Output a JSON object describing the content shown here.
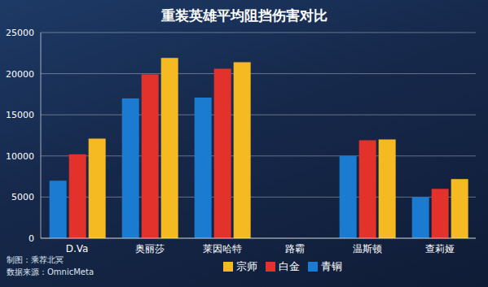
{
  "chart_data": {
    "type": "bar",
    "title": "重装英雄平均阻挡伤害对比",
    "categories": [
      "D.Va",
      "奥丽莎",
      "莱因哈特",
      "路霸",
      "温斯顿",
      "查莉娅"
    ],
    "series": [
      {
        "name": "青铜",
        "color": "#1b7bd0",
        "values": [
          7000,
          17000,
          17100,
          null,
          10000,
          5000
        ]
      },
      {
        "name": "白金",
        "color": "#e3312c",
        "values": [
          10200,
          19900,
          20600,
          null,
          11900,
          6000
        ]
      },
      {
        "name": "宗师",
        "color": "#f5b921",
        "values": [
          12100,
          21900,
          21400,
          null,
          12000,
          7200
        ]
      }
    ],
    "ylim": [
      0,
      25000
    ],
    "yticks": [
      0,
      5000,
      10000,
      15000,
      20000,
      25000
    ],
    "grid": true,
    "legend": "bottom",
    "annotations": [
      "制图：乘荐北冥",
      "数据来源：OmnicMeta"
    ]
  }
}
